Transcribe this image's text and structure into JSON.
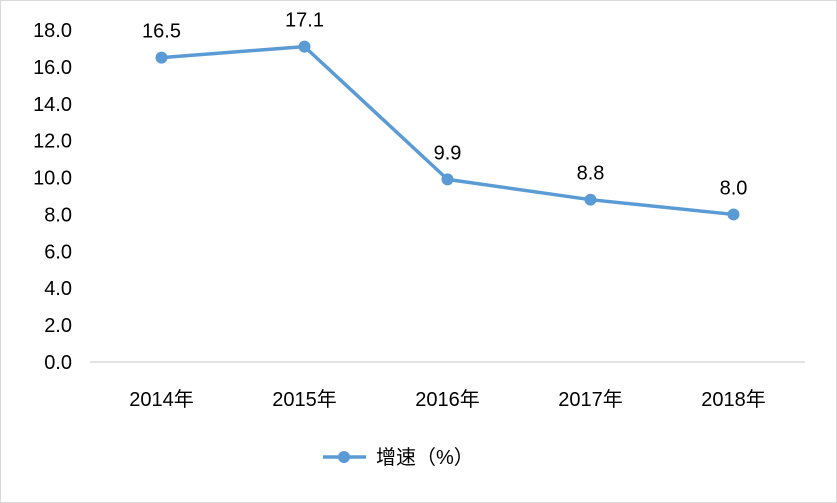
{
  "chart_data": {
    "type": "line",
    "categories": [
      "2014年",
      "2015年",
      "2016年",
      "2017年",
      "2018年"
    ],
    "series": [
      {
        "name": "增速（%）",
        "values": [
          16.5,
          17.1,
          9.9,
          8.8,
          8.0
        ]
      }
    ],
    "data_labels": [
      "16.5",
      "17.1",
      "9.9",
      "8.8",
      "8.0"
    ],
    "yticks": [
      "0.0",
      "2.0",
      "4.0",
      "6.0",
      "8.0",
      "10.0",
      "12.0",
      "14.0",
      "16.0",
      "18.0"
    ],
    "ylim": [
      0,
      18
    ],
    "title": "",
    "xlabel": "",
    "ylabel": "",
    "grid": false,
    "legend_position": "bottom",
    "colors": {
      "line": "#5B9BD5",
      "axis": "#d9d9d9"
    }
  }
}
